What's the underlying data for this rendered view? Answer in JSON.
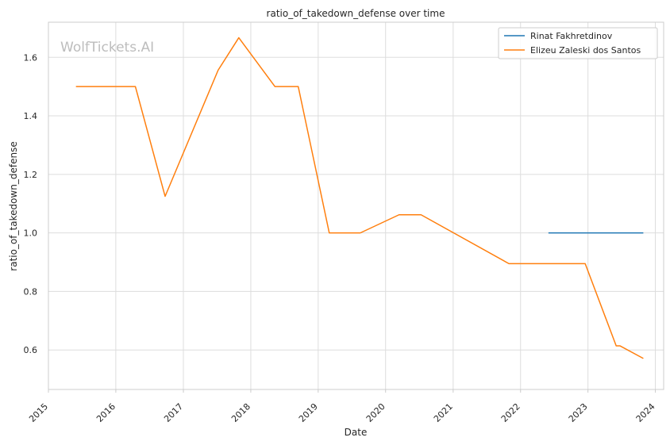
{
  "chart_data": {
    "type": "line",
    "title": "ratio_of_takedown_defense over time",
    "xlabel": "Date",
    "ylabel": "ratio_of_takedown_defense",
    "watermark": "WolfTickets.AI",
    "xlim": [
      "2015-01-01",
      "2024-02-15"
    ],
    "ylim": [
      0.465,
      1.72
    ],
    "x_ticks": [
      "2015",
      "2016",
      "2017",
      "2018",
      "2019",
      "2020",
      "2021",
      "2022",
      "2023",
      "2024"
    ],
    "y_ticks": [
      0.6,
      0.8,
      1.0,
      1.2,
      1.4,
      1.6
    ],
    "y_tick_labels": [
      "0.6",
      "0.8",
      "1.0",
      "1.2",
      "1.4",
      "1.6"
    ],
    "grid": true,
    "legend_position": "top-right",
    "series": [
      {
        "name": "Rinat Fakhretdinov",
        "color": "#1f77b4",
        "points": [
          {
            "x": "2022-06-01",
            "y": 1.0
          },
          {
            "x": "2023-10-28",
            "y": 1.0
          }
        ]
      },
      {
        "name": "Elizeu Zaleski dos Santos",
        "color": "#ff7f0e",
        "points": [
          {
            "x": "2015-05-30",
            "y": 1.5
          },
          {
            "x": "2016-04-16",
            "y": 1.5
          },
          {
            "x": "2016-09-24",
            "y": 1.125
          },
          {
            "x": "2017-07-08",
            "y": 1.556
          },
          {
            "x": "2017-10-28",
            "y": 1.667
          },
          {
            "x": "2018-05-12",
            "y": 1.5
          },
          {
            "x": "2018-09-15",
            "y": 1.5
          },
          {
            "x": "2019-03-02",
            "y": 1.0
          },
          {
            "x": "2019-08-17",
            "y": 1.0
          },
          {
            "x": "2020-03-14",
            "y": 1.062
          },
          {
            "x": "2020-07-11",
            "y": 1.062
          },
          {
            "x": "2021-10-30",
            "y": 0.895
          },
          {
            "x": "2022-12-17",
            "y": 0.895
          },
          {
            "x": "2023-06-03",
            "y": 0.614
          },
          {
            "x": "2023-06-24",
            "y": 0.614
          },
          {
            "x": "2023-10-28",
            "y": 0.571
          }
        ]
      }
    ]
  }
}
